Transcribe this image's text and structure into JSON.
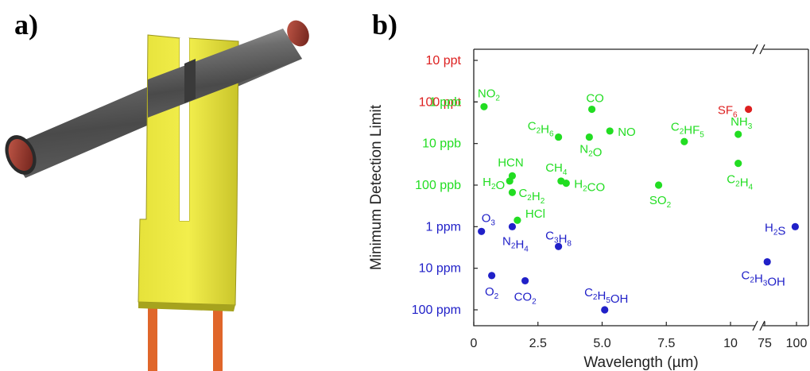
{
  "panels": {
    "a": "a)",
    "b": "b)"
  },
  "colors": {
    "ppt": "#dd1f1f",
    "ppb": "#22dd22",
    "ppm": "#2020c8"
  },
  "chart_data": {
    "type": "scatter",
    "xlabel": "Wavelength (µm)",
    "ylabel": "Minimum Detection Limit",
    "x_ticks": [
      "0",
      "2.5",
      "5.0",
      "7.5",
      "10",
      "75",
      "100"
    ],
    "y_ticks": [
      {
        "label": "10 ppt",
        "group": "ppt"
      },
      {
        "label": "100 ppt",
        "group": "ppt"
      },
      {
        "label": "1 ppb",
        "group": "ppb"
      },
      {
        "label": "10 ppb",
        "group": "ppb"
      },
      {
        "label": "100 ppb",
        "group": "ppb"
      },
      {
        "label": "1 ppm",
        "group": "ppm"
      },
      {
        "label": "10 ppm",
        "group": "ppm"
      },
      {
        "label": "100 ppm",
        "group": "ppm"
      }
    ],
    "points": [
      {
        "species": "SF",
        "sub": "6",
        "x": 10.7,
        "y": "150 ppt",
        "group": "ppt"
      },
      {
        "species": "NO",
        "sub": "2",
        "x": 0.4,
        "y": "1.3 ppb",
        "group": "ppb"
      },
      {
        "species": "CO",
        "x": 4.6,
        "y": "1.5 ppb",
        "group": "ppb"
      },
      {
        "species": "C",
        "sub": "2",
        "tail": "H",
        "sub2": "6",
        "x": 3.3,
        "y": "7 ppb",
        "group": "ppb"
      },
      {
        "species": "NO",
        "x": 5.3,
        "y": "5 ppb",
        "group": "ppb"
      },
      {
        "species": "N",
        "sub": "2",
        "tail": "O",
        "x": 4.5,
        "y": "7 ppb",
        "group": "ppb"
      },
      {
        "species": "C",
        "sub": "2",
        "tail": "HF",
        "sub2": "5",
        "x": 8.2,
        "y": "9 ppb",
        "group": "ppb"
      },
      {
        "species": "NH",
        "sub": "3",
        "x": 10.3,
        "y": "6 ppb",
        "group": "ppb"
      },
      {
        "species": "HCN",
        "x": 1.5,
        "y": "60 ppb",
        "group": "ppb"
      },
      {
        "species": "H",
        "sub": "2",
        "tail": "O",
        "x": 1.4,
        "y": "80 ppb",
        "group": "ppb"
      },
      {
        "species": "CH",
        "sub": "4",
        "x": 3.4,
        "y": "80 ppb",
        "group": "ppb"
      },
      {
        "species": "H",
        "sub": "2",
        "tail": "CO",
        "x": 3.6,
        "y": "90 ppb",
        "group": "ppb"
      },
      {
        "species": "C",
        "sub": "2",
        "tail": "H",
        "sub2": "2",
        "x": 1.5,
        "y": "150 ppb",
        "group": "ppb"
      },
      {
        "species": "SO",
        "sub": "2",
        "x": 7.2,
        "y": "100 ppb",
        "group": "ppb"
      },
      {
        "species": "C",
        "sub": "2",
        "tail": "H",
        "sub2": "4",
        "x": 10.3,
        "y": "30 ppb",
        "group": "ppb"
      },
      {
        "species": "HCl",
        "x": 1.7,
        "y": "700 ppb",
        "group": "ppb"
      },
      {
        "species": "O",
        "sub": "3",
        "x": 0.3,
        "y": "1.3 ppm",
        "group": "ppm"
      },
      {
        "species": "N",
        "sub": "2",
        "tail": "H",
        "sub2": "4",
        "x": 1.5,
        "y": "1 ppm",
        "group": "ppm"
      },
      {
        "species": "C",
        "sub": "3",
        "tail": "H",
        "sub2": "8",
        "x": 3.3,
        "y": "3 ppm",
        "group": "ppm"
      },
      {
        "species": "H",
        "sub": "2",
        "tail": "S",
        "x": 99,
        "y": "1 ppm",
        "group": "ppm"
      },
      {
        "species": "C",
        "sub": "2",
        "tail": "H",
        "sub2": "3",
        "tail2": "OH",
        "x": 77,
        "y": "7 ppm",
        "group": "ppm"
      },
      {
        "species": "O",
        "sub": "2",
        "x": 0.7,
        "y": "15 ppm",
        "group": "ppm"
      },
      {
        "species": "CO",
        "sub": "2",
        "x": 2.0,
        "y": "20 ppm",
        "group": "ppm"
      },
      {
        "species": "C",
        "sub": "2",
        "tail": "H",
        "sub2": "5",
        "tail2": "OH",
        "x": 5.1,
        "y": "100 ppm",
        "group": "ppm"
      }
    ]
  }
}
